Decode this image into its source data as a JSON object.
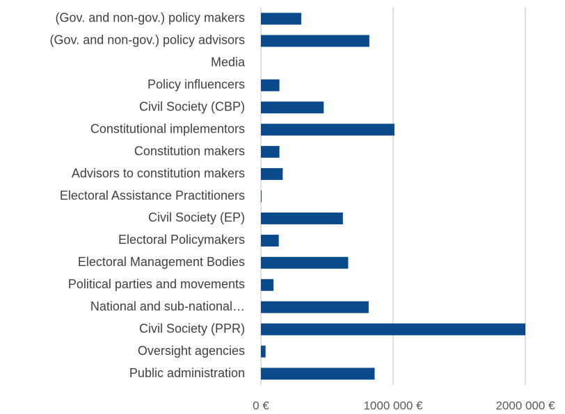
{
  "chart_data": {
    "type": "bar",
    "orientation": "horizontal",
    "categories": [
      "(Gov. and non-gov.) policy makers",
      "(Gov. and non-gov.) policy advisors",
      "Media",
      "Policy influencers",
      "Civil Society (CBP)",
      "Constitutional implementors",
      "Constitution makers",
      "Advisors to constitution makers",
      "Electoral Assistance Practitioners",
      "Civil Society (EP)",
      "Electoral Policymakers",
      "Electoral Management Bodies",
      "Political parties and movements",
      "National and sub-national…",
      "Civil Society (PPR)",
      "Oversight agencies",
      "Public administration"
    ],
    "values": [
      305000,
      820000,
      0,
      140000,
      475000,
      1010000,
      140000,
      165000,
      5000,
      620000,
      135000,
      660000,
      95000,
      815000,
      2000000,
      35000,
      860000
    ],
    "color": "#0b4a8b",
    "xlim": [
      0,
      2000000
    ],
    "xticks": [
      {
        "value": 0,
        "label": "0 €"
      },
      {
        "value": 1000000,
        "label": "1000 000 €"
      },
      {
        "value": 2000000,
        "label": "2000 000 €"
      }
    ],
    "grid": true
  }
}
